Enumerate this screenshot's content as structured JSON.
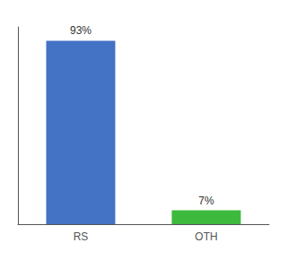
{
  "chart_data": {
    "type": "bar",
    "categories": [
      "RS",
      "OTH"
    ],
    "values": [
      93,
      7
    ],
    "value_labels": [
      "93%",
      "7%"
    ],
    "colors": [
      "#4472c4",
      "#3dba3d"
    ],
    "ylim": [
      0,
      100
    ],
    "data_labels": true,
    "tick_labels": "x",
    "grid": false
  }
}
